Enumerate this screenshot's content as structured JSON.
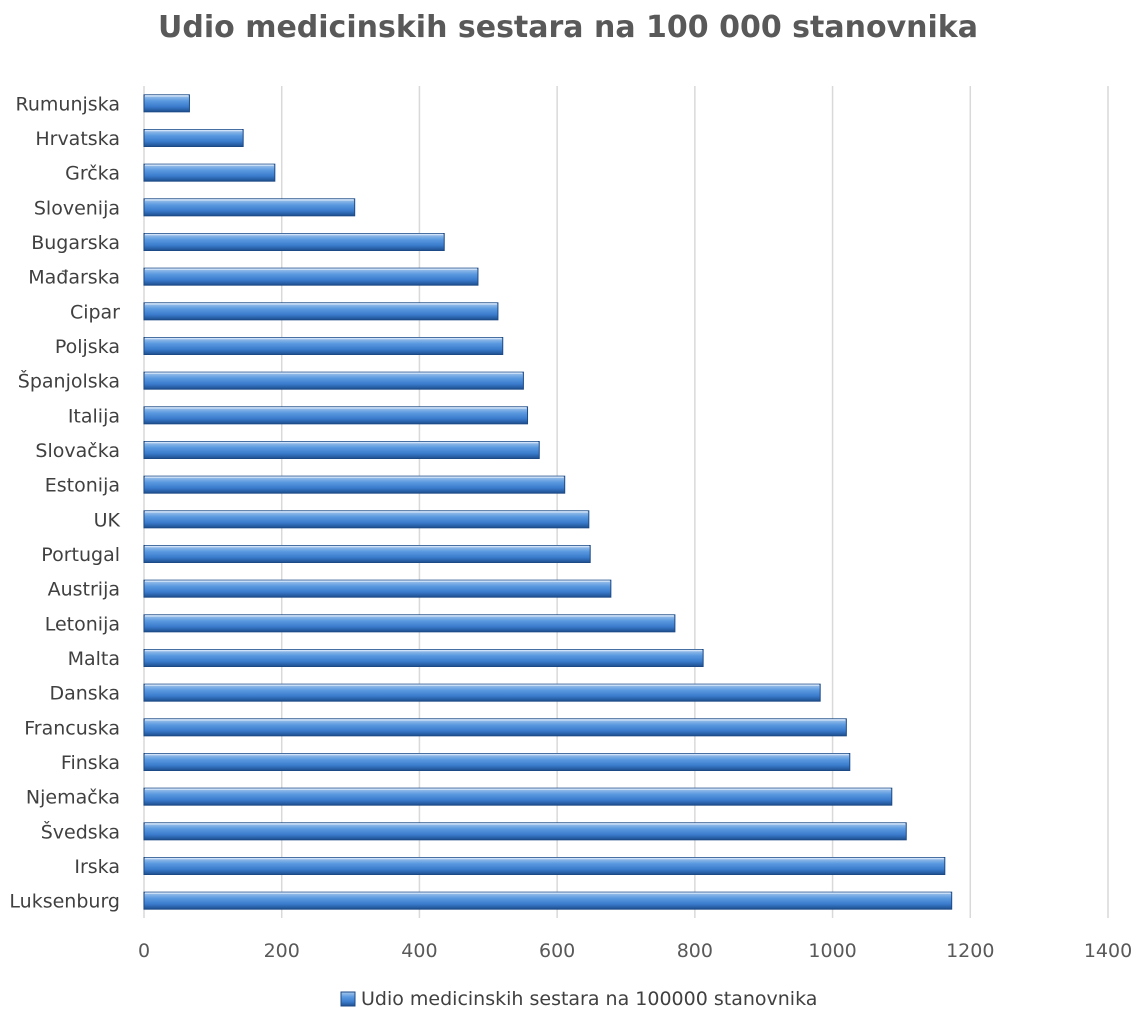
{
  "chart_data": {
    "type": "bar",
    "orientation": "horizontal",
    "title": "Udio medicinskih sestara na 100 000 stanovnika",
    "categories": [
      "Rumunjska",
      "Hrvatska",
      "Grčka",
      "Slovenija",
      "Bugarska",
      "Mađarska",
      "Cipar",
      "Poljska",
      "Španjolska",
      "Italija",
      "Slovačka",
      "Estonija",
      "UK",
      "Portugal",
      "Austrija",
      "Letonija",
      "Malta",
      "Danska",
      "Francuska",
      "Finska",
      "Njemačka",
      "Švedska",
      "Irska",
      "Luksenburg"
    ],
    "series": [
      {
        "name": "Udio medicinskih sestara na 100000 stanovnika",
        "color": "#2f6fba",
        "values": [
          66,
          144,
          190,
          306,
          436,
          485,
          514,
          521,
          551,
          557,
          574,
          611,
          646,
          648,
          678,
          771,
          812,
          982,
          1020,
          1025,
          1086,
          1107,
          1163,
          1173
        ]
      }
    ],
    "xlim": [
      0,
      1400
    ],
    "xticks": [
      "0",
      "200",
      "400",
      "600",
      "800",
      "1000",
      "1200",
      "1400"
    ],
    "grid": true,
    "legend_position": "bottom"
  }
}
